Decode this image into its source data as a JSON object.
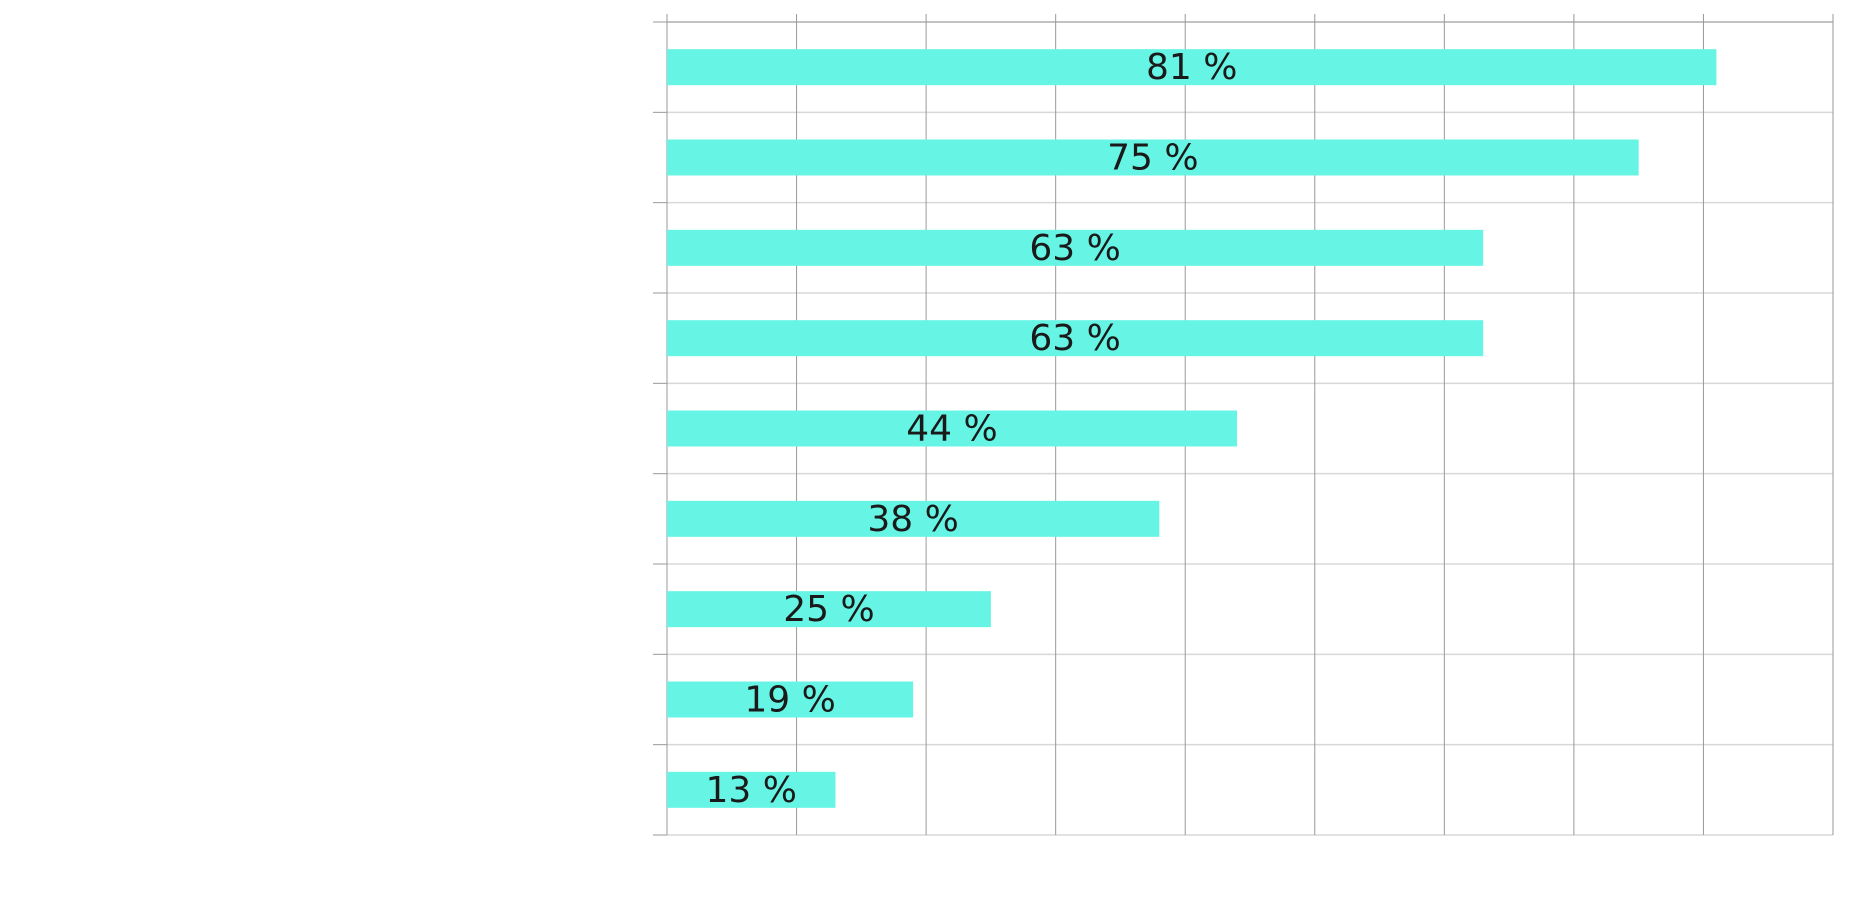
{
  "chart_data": {
    "type": "bar",
    "orientation": "horizontal",
    "categories": [
      "",
      "",
      "",
      "",
      "",
      "",
      "",
      "",
      ""
    ],
    "values": [
      81,
      75,
      63,
      63,
      44,
      38,
      25,
      19,
      13
    ],
    "data_labels": [
      "81 %",
      "75 %",
      "63 %",
      "63 %",
      "44 %",
      "38 %",
      "25 %",
      "19 %",
      "13 %"
    ],
    "xlim": [
      0,
      90
    ],
    "x_grid_step": 10,
    "grid": true,
    "legend": "none",
    "title": "",
    "xlabel": "",
    "ylabel": ""
  },
  "colors": {
    "bar": "#66f5e4",
    "label_text": "#1a1a1a",
    "major_grid": "#999999",
    "minor_grid": "#d8d8d8",
    "axis": "#999999",
    "background": "#ffffff"
  }
}
